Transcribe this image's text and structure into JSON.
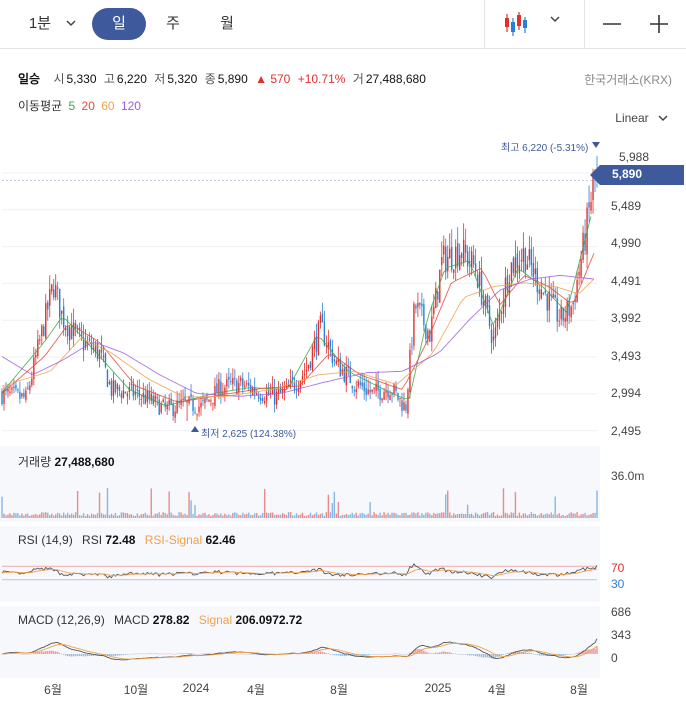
{
  "toolbar": {
    "interval": "1분",
    "periods": [
      "일",
      "주",
      "월"
    ],
    "active_period": "일",
    "chart_type_icon": "candlestick-icon",
    "zoom_out_icon": "minus-icon",
    "zoom_in_icon": "plus-icon"
  },
  "stock": {
    "name": "일승",
    "open_label": "시",
    "open": "5,330",
    "high_label": "고",
    "high": "6,220",
    "low_label": "저",
    "low": "5,320",
    "close_label": "종",
    "close": "5,890",
    "change": "▲ 570",
    "change_pct": "+10.71%",
    "volume_label": "거",
    "volume": "27,488,680",
    "exchange": "한국거래소(KRX)",
    "up_color": "#e0302d",
    "down_color": "#2a7fd4"
  },
  "moving_averages": {
    "label": "이동평균",
    "items": [
      {
        "period": "5",
        "color": "#3aa54a"
      },
      {
        "period": "20",
        "color": "#e04a3a"
      },
      {
        "period": "60",
        "color": "#f0a04a"
      },
      {
        "period": "120",
        "color": "#9b5de0"
      }
    ]
  },
  "scale_mode": "Linear",
  "price_tag": "5,890",
  "chart_data": [
    {
      "type": "candlestick",
      "title": "",
      "y_ticks": [
        "5,988",
        "5,489",
        "4,990",
        "4,491",
        "3,992",
        "3,493",
        "2,994",
        "2,495"
      ],
      "y_tick_values": [
        5988,
        5489,
        4990,
        4491,
        3992,
        3493,
        2994,
        2495
      ],
      "ylim": [
        2300,
        6300
      ],
      "x_ticks": [
        "6월",
        "10월",
        "2024",
        "4월",
        "8월",
        "2025",
        "4월",
        "8월"
      ],
      "x_tick_positions": [
        3,
        4.4,
        5.2,
        6.3,
        7.8,
        9.4,
        10.4,
        11.9
      ],
      "xlim": [
        2.3,
        12.1
      ],
      "max_label": "최고 6,220 (-5.31%)",
      "max_value": 6220,
      "min_label": "최저 2,625 (124.38%)",
      "min_value": 2625,
      "last_close": 5890,
      "close_path": [
        [
          2.3,
          2990
        ],
        [
          2.7,
          2930
        ],
        [
          2.95,
          3800
        ],
        [
          3.15,
          4480
        ],
        [
          3.3,
          4020
        ],
        [
          3.6,
          3700
        ],
        [
          3.9,
          3550
        ],
        [
          4.1,
          3050
        ],
        [
          4.5,
          3000
        ],
        [
          4.8,
          2880
        ],
        [
          5.0,
          2780
        ],
        [
          5.3,
          2850
        ],
        [
          5.6,
          2820
        ],
        [
          5.9,
          3080
        ],
        [
          6.2,
          3120
        ],
        [
          6.5,
          3030
        ],
        [
          6.8,
          2950
        ],
        [
          7.0,
          3030
        ],
        [
          7.3,
          3300
        ],
        [
          7.55,
          3900
        ],
        [
          7.8,
          3400
        ],
        [
          8.1,
          3150
        ],
        [
          8.4,
          3000
        ],
        [
          8.7,
          3080
        ],
        [
          8.95,
          2800
        ],
        [
          9.1,
          4200
        ],
        [
          9.35,
          3800
        ],
        [
          9.55,
          4800
        ],
        [
          9.85,
          4950
        ],
        [
          10.1,
          4700
        ],
        [
          10.4,
          3700
        ],
        [
          10.65,
          4700
        ],
        [
          10.9,
          4900
        ],
        [
          11.2,
          4400
        ],
        [
          11.5,
          4000
        ],
        [
          11.7,
          4200
        ],
        [
          11.9,
          5100
        ],
        [
          12.05,
          5890
        ]
      ],
      "moving_average_paths": {
        "5": [
          [
            2.3,
            3010
          ],
          [
            3.0,
            3700
          ],
          [
            3.3,
            4050
          ],
          [
            3.8,
            3600
          ],
          [
            4.4,
            3050
          ],
          [
            5.0,
            2830
          ],
          [
            5.8,
            3000
          ],
          [
            6.4,
            3080
          ],
          [
            7.0,
            3050
          ],
          [
            7.5,
            3800
          ],
          [
            8.0,
            3300
          ],
          [
            8.6,
            3050
          ],
          [
            9.0,
            2900
          ],
          [
            9.3,
            4000
          ],
          [
            9.6,
            4700
          ],
          [
            10.0,
            4800
          ],
          [
            10.4,
            3900
          ],
          [
            10.8,
            4700
          ],
          [
            11.2,
            4450
          ],
          [
            11.6,
            4100
          ],
          [
            12.0,
            5400
          ]
        ],
        "20": [
          [
            2.3,
            3000
          ],
          [
            3.0,
            3500
          ],
          [
            3.4,
            3950
          ],
          [
            3.9,
            3700
          ],
          [
            4.5,
            3100
          ],
          [
            5.2,
            2880
          ],
          [
            6.0,
            2990
          ],
          [
            6.6,
            3070
          ],
          [
            7.2,
            3100
          ],
          [
            7.7,
            3550
          ],
          [
            8.2,
            3250
          ],
          [
            8.9,
            3050
          ],
          [
            9.3,
            3700
          ],
          [
            9.7,
            4500
          ],
          [
            10.2,
            4700
          ],
          [
            10.5,
            4200
          ],
          [
            10.9,
            4600
          ],
          [
            11.3,
            4450
          ],
          [
            11.7,
            4200
          ],
          [
            12.05,
            4900
          ]
        ],
        "60": [
          [
            2.3,
            3100
          ],
          [
            3.1,
            3300
          ],
          [
            3.6,
            3750
          ],
          [
            4.1,
            3550
          ],
          [
            4.7,
            3200
          ],
          [
            5.3,
            2950
          ],
          [
            6.0,
            2960
          ],
          [
            6.8,
            3060
          ],
          [
            7.5,
            3250
          ],
          [
            8.1,
            3300
          ],
          [
            8.8,
            3120
          ],
          [
            9.4,
            3550
          ],
          [
            9.9,
            4300
          ],
          [
            10.4,
            4450
          ],
          [
            10.9,
            4500
          ],
          [
            11.4,
            4450
          ],
          [
            11.8,
            4350
          ],
          [
            12.05,
            4550
          ]
        ],
        "120": [
          [
            2.3,
            3500
          ],
          [
            2.8,
            3250
          ],
          [
            3.3,
            3450
          ],
          [
            3.8,
            3700
          ],
          [
            4.3,
            3550
          ],
          [
            4.9,
            3250
          ],
          [
            5.5,
            3000
          ],
          [
            6.2,
            2960
          ],
          [
            6.9,
            3000
          ],
          [
            7.6,
            3150
          ],
          [
            8.3,
            3280
          ],
          [
            8.9,
            3300
          ],
          [
            9.5,
            3550
          ],
          [
            10.0,
            4000
          ],
          [
            10.5,
            4400
          ],
          [
            11.0,
            4550
          ],
          [
            11.5,
            4600
          ],
          [
            12.05,
            4550
          ]
        ]
      }
    },
    {
      "type": "bar",
      "title": "거래량",
      "value_label": "27,488,680",
      "y_ticks": [
        "36.0m"
      ],
      "ylim": [
        0,
        40000000
      ]
    },
    {
      "type": "line",
      "title": "RSI (14,9)",
      "series": [
        {
          "name": "RSI",
          "value": "72.48",
          "color": "#555555"
        },
        {
          "name": "RSI-Signal",
          "value": "62.46",
          "color": "#f0a04a"
        }
      ],
      "y_ticks": [
        "70",
        "30"
      ],
      "ylim": [
        0,
        100
      ]
    },
    {
      "type": "line",
      "title": "MACD (12,26,9)",
      "series": [
        {
          "name": "MACD",
          "value": "278.82",
          "color": "#555555"
        },
        {
          "name": "Signal",
          "value": "206.0972.72",
          "color": "#f0a04a"
        }
      ],
      "y_ticks": [
        "686",
        "343",
        "0"
      ],
      "ylim": [
        -400,
        800
      ]
    }
  ]
}
